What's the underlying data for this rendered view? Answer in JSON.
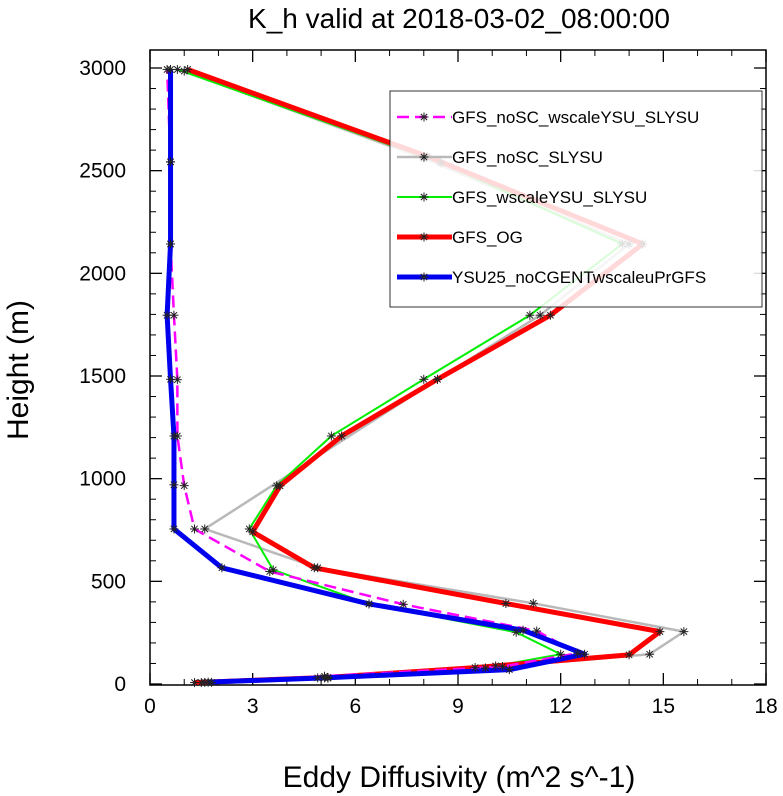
{
  "chart_data": {
    "type": "line",
    "title": "K_h valid at 2018-03-02_08:00:00",
    "xlabel": "Eddy Diffusivity (m^2 s^-1)",
    "ylabel": "Height (m)",
    "xlim": [
      0,
      18
    ],
    "ylim": [
      0,
      3000
    ],
    "xticks": [
      0,
      3,
      6,
      9,
      12,
      15,
      18
    ],
    "yticks": [
      0,
      500,
      1000,
      1500,
      2000,
      2500,
      3000
    ],
    "x_tick_labels": [
      "0",
      "3",
      "6",
      "9",
      "12",
      "15",
      "18"
    ],
    "y_tick_labels": [
      "0",
      "500",
      "1000",
      "1500",
      "2000",
      "2500",
      "3000"
    ],
    "legend_position": "top-right",
    "marker": "asterisk",
    "series": [
      {
        "name": "GFS_noSC_wscaleYSU_SLYSU",
        "color": "#ff00ff",
        "line_style": "dashed",
        "points": [
          [
            1.5,
            7
          ],
          [
            5.1,
            38
          ],
          [
            10.3,
            85
          ],
          [
            12.5,
            150
          ],
          [
            11.3,
            258
          ],
          [
            7.4,
            388
          ],
          [
            3.5,
            548
          ],
          [
            1.3,
            755
          ],
          [
            1.0,
            966
          ],
          [
            0.8,
            1208
          ],
          [
            0.8,
            1482
          ],
          [
            0.7,
            1796
          ],
          [
            0.6,
            2143
          ],
          [
            0.6,
            2543
          ],
          [
            0.5,
            2993
          ]
        ]
      },
      {
        "name": "GFS_noSC_SLYSU",
        "color": "#b9b9b9",
        "line_style": "solid",
        "points": [
          [
            1.8,
            8
          ],
          [
            4.9,
            30
          ],
          [
            9.8,
            78
          ],
          [
            14.6,
            145
          ],
          [
            15.6,
            255
          ],
          [
            11.2,
            393
          ],
          [
            4.9,
            566
          ],
          [
            1.6,
            755
          ],
          [
            8.4,
            1484
          ],
          [
            11.4,
            1796
          ],
          [
            14.0,
            2143
          ],
          [
            8.0,
            2560
          ],
          [
            1.0,
            2985
          ]
        ]
      },
      {
        "name": "GFS_wscaleYSU_SLYSU",
        "color": "#00ee00",
        "line_style": "solid",
        "points": [
          [
            1.6,
            8
          ],
          [
            5.2,
            28
          ],
          [
            10.1,
            88
          ],
          [
            12.0,
            145
          ],
          [
            10.7,
            252
          ],
          [
            6.4,
            390
          ],
          [
            3.6,
            556
          ],
          [
            2.9,
            755
          ],
          [
            3.7,
            965
          ],
          [
            5.3,
            1208
          ],
          [
            8.0,
            1484
          ],
          [
            11.1,
            1796
          ],
          [
            13.8,
            2143
          ],
          [
            8.5,
            2538
          ],
          [
            0.8,
            2993
          ]
        ]
      },
      {
        "name": "GFS_OG",
        "color": "#ff0000",
        "line_style": "solid",
        "points": [
          [
            1.3,
            7
          ],
          [
            5.2,
            32
          ],
          [
            9.5,
            80
          ],
          [
            14.0,
            142
          ],
          [
            14.9,
            255
          ],
          [
            10.4,
            392
          ],
          [
            4.8,
            566
          ],
          [
            3.0,
            741
          ],
          [
            3.8,
            965
          ],
          [
            5.6,
            1208
          ],
          [
            8.4,
            1484
          ],
          [
            11.7,
            1796
          ],
          [
            14.4,
            2143
          ],
          [
            8.1,
            2570
          ],
          [
            1.1,
            2993
          ]
        ]
      },
      {
        "name": "YSU25_noCGENTwscaleuPrGFS",
        "color": "#0000ee",
        "line_style": "solid",
        "points": [
          [
            1.7,
            9
          ],
          [
            5.1,
            30
          ],
          [
            10.5,
            70
          ],
          [
            12.7,
            145
          ],
          [
            10.9,
            262
          ],
          [
            6.4,
            390
          ],
          [
            2.1,
            566
          ],
          [
            0.7,
            755
          ],
          [
            0.7,
            970
          ],
          [
            0.7,
            1208
          ],
          [
            0.6,
            1484
          ],
          [
            0.5,
            1796
          ],
          [
            0.6,
            2143
          ],
          [
            0.6,
            2543
          ],
          [
            0.6,
            2993
          ]
        ]
      }
    ]
  }
}
